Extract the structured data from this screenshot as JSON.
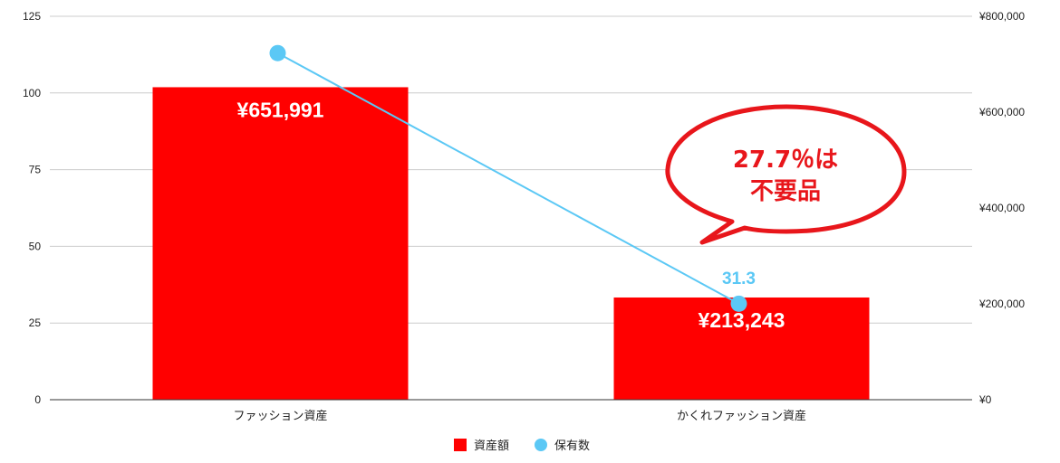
{
  "chart_data": {
    "type": "bar",
    "categories": [
      "ファッション資産",
      "かくれファッション資産"
    ],
    "series": [
      {
        "name": "資産額",
        "type": "bar",
        "axis": "right",
        "values": [
          651991,
          213243
        ],
        "labels": [
          "¥651,991",
          "¥213,243"
        ],
        "color": "#ff0000"
      },
      {
        "name": "保有数",
        "type": "line",
        "axis": "left",
        "values": [
          113,
          31.3
        ],
        "labels": [
          "",
          "31.3"
        ],
        "color": "#5bc8f5"
      }
    ],
    "y_left": {
      "ylim": [
        0,
        125
      ],
      "ticks": [
        "0",
        "25",
        "50",
        "75",
        "100",
        "125"
      ]
    },
    "y_right": {
      "ylim": [
        0,
        800000
      ],
      "ticks": [
        "¥0",
        "¥200,000",
        "¥400,000",
        "¥600,000",
        "¥800,000"
      ]
    },
    "grid": true,
    "legend": "bottom",
    "annotation": {
      "lines": [
        "27.7％は",
        "不要品"
      ],
      "color": "#e8161b"
    }
  }
}
